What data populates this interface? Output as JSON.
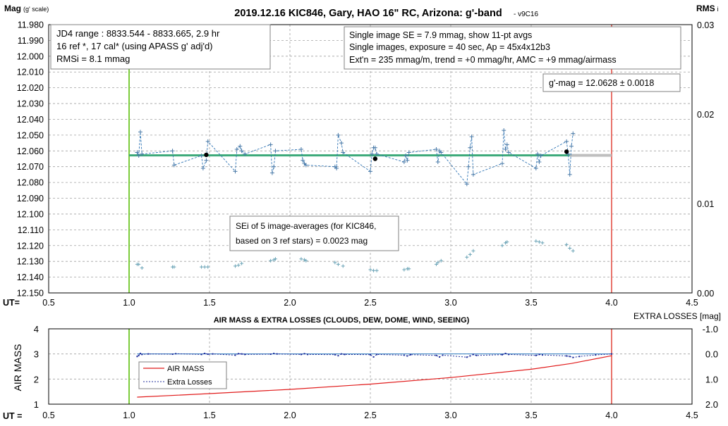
{
  "colors": {
    "grid": "#a0a0a0",
    "lc_line": "#2e74b5",
    "lc_marker": "#4a7aa8",
    "fit_green": "#3daa7a",
    "fit_gray": "#bfbfbf",
    "rms_marker": "#6aa3b6",
    "start_line": "#7ccc3c",
    "end_line": "#e8736b",
    "airmass": "#e11b1b",
    "losses": "#1f2f9e",
    "losses_ref": "#2e7cbf"
  },
  "chart_data": [
    {
      "type": "scatter",
      "title": "2019.12.16 KIC846, Gary, HAO 16\" RC, Arizona: g'-band",
      "title_suffix": "- v9C16",
      "ylabel_bold": "Mag",
      "ylabel_small": "(g' scale)",
      "y2label_bold": "RMS",
      "y2label_small": "i",
      "xlabel": "UT=",
      "xlim": [
        0.5,
        4.5
      ],
      "ylim": [
        11.98,
        12.15
      ],
      "y_reversed": true,
      "y2lim": [
        0,
        0.03
      ],
      "x_ticks": [
        "0.5",
        "1.0",
        "1.5",
        "2.0",
        "2.5",
        "3.0",
        "3.5",
        "4.0",
        "4.5"
      ],
      "y_ticks": [
        "11.980",
        "11.990",
        "12.000",
        "12.010",
        "12.020",
        "12.030",
        "12.040",
        "12.050",
        "12.060",
        "12.070",
        "12.080",
        "12.090",
        "12.100",
        "12.110",
        "12.120",
        "12.130",
        "12.140",
        "12.150"
      ],
      "y2_ticks": [
        "0.00",
        "0.01",
        "0.02",
        "0.03"
      ],
      "grid": true,
      "start_ut": 1.0,
      "end_ut": 4.0,
      "fit_mag": 12.0628,
      "fit_green_range": [
        1.0,
        3.74
      ],
      "fit_gray_range": [
        3.74,
        4.0
      ],
      "series": [
        {
          "x": [
            1.05,
            1.06,
            1.07,
            1.08,
            1.27,
            1.28,
            1.45,
            1.46,
            1.48,
            1.49,
            1.66,
            1.67,
            1.69,
            1.7,
            1.72,
            1.88,
            1.89,
            1.9,
            1.91,
            2.07,
            2.08,
            2.09,
            2.1,
            2.28,
            2.29,
            2.3,
            2.32,
            2.33,
            2.5,
            2.51,
            2.52,
            2.53,
            2.54,
            2.71,
            2.72,
            2.73,
            2.74,
            2.91,
            2.92,
            2.93,
            2.94,
            3.1,
            3.11,
            3.12,
            3.13,
            3.14,
            3.32,
            3.33,
            3.34,
            3.35,
            3.36,
            3.53,
            3.54,
            3.55,
            3.56,
            3.72,
            3.73,
            3.74,
            3.75,
            3.76
          ],
          "y": [
            12.061,
            12.063,
            12.048,
            12.062,
            12.06,
            12.069,
            12.063,
            12.071,
            12.066,
            12.054,
            12.073,
            12.059,
            12.057,
            12.06,
            12.062,
            12.056,
            12.074,
            12.07,
            12.06,
            12.059,
            12.066,
            12.068,
            12.069,
            12.07,
            12.071,
            12.05,
            12.055,
            12.061,
            12.073,
            12.062,
            12.058,
            12.058,
            12.062,
            12.067,
            12.063,
            12.066,
            12.061,
            12.059,
            12.067,
            12.06,
            12.061,
            12.081,
            12.07,
            12.058,
            12.051,
            12.075,
            12.068,
            12.047,
            12.059,
            12.056,
            12.061,
            12.071,
            12.062,
            12.067,
            12.063,
            12.054,
            12.062,
            12.075,
            12.057,
            12.049
          ]
        }
      ],
      "group_averages": {
        "x": [
          1.48,
          2.53,
          3.72
        ],
        "y": [
          12.0625,
          12.065,
          12.0605
        ]
      },
      "rms_points": {
        "x": [
          1.05,
          1.06,
          1.08,
          1.27,
          1.28,
          1.45,
          1.47,
          1.49,
          1.66,
          1.68,
          1.7,
          1.88,
          1.9,
          1.91,
          2.07,
          2.09,
          2.1,
          2.28,
          2.3,
          2.33,
          2.5,
          2.52,
          2.54,
          2.71,
          2.73,
          2.74,
          2.91,
          2.92,
          2.94,
          3.1,
          3.12,
          3.14,
          3.32,
          3.34,
          3.35,
          3.53,
          3.55,
          3.57,
          3.72,
          3.74,
          3.76
        ],
        "y": [
          0.0032,
          0.0032,
          0.0028,
          0.0029,
          0.0029,
          0.0029,
          0.0029,
          0.0029,
          0.003,
          0.0031,
          0.0033,
          0.0036,
          0.0037,
          0.0038,
          0.0038,
          0.0037,
          0.0036,
          0.0034,
          0.0032,
          0.003,
          0.0026,
          0.0025,
          0.0025,
          0.0026,
          0.0027,
          0.0027,
          0.0032,
          0.0034,
          0.0036,
          0.004,
          0.0043,
          0.0047,
          0.0053,
          0.0056,
          0.0057,
          0.0058,
          0.0057,
          0.0056,
          0.0054,
          0.005,
          0.0047
        ]
      },
      "annotations": {
        "box1": [
          "JD4 range : 8833.544 - 8833.665,  2.9  hr",
          "16 ref *, 17 cal* (using APASS g' adj'd)",
          "RMSi = 8.1 mmag"
        ],
        "box2": [
          "Single image SE = 7.9 mmag, show  11-pt avgs",
          "Single images, exposure = 40 sec, Ap = 45x4x12b3",
          "Ext'n = 235 mmag/m, trend =  +0 mmag/hr, AMC = +9 mmag/airmass"
        ],
        "box3": "g'-mag = 12.0628 ± 0.0018",
        "box4": [
          "SEi of 5 image-averages (for KIC846,",
          "based on 3 ref stars) = 0.0023 mag"
        ]
      }
    },
    {
      "type": "line",
      "title": "AIR MASS & EXTRA LOSSES (CLOUDS, DEW, DOME, WIND, SEEING)",
      "ylabel": "AIR MASS",
      "y2label": "EXTRA LOSSES [mag]",
      "xlabel": "UT =",
      "xlim": [
        0.5,
        4.5
      ],
      "ylim": [
        1,
        4
      ],
      "y2lim": [
        2.0,
        -1.0
      ],
      "x_ticks": [
        "0.5",
        "1.0",
        "1.5",
        "2.0",
        "2.5",
        "3.0",
        "3.5",
        "4.0",
        "4.5"
      ],
      "y_ticks": [
        "1",
        "2",
        "3",
        "4"
      ],
      "y2_ticks": [
        "2.0",
        "1.0",
        "0.0",
        "-1.0"
      ],
      "grid": true,
      "series": [
        {
          "name": "AIR MASS",
          "x": [
            1.05,
            1.5,
            2.0,
            2.5,
            3.0,
            3.5,
            3.75,
            4.0
          ],
          "y": [
            1.28,
            1.42,
            1.59,
            1.8,
            2.06,
            2.39,
            2.62,
            2.93
          ]
        },
        {
          "name": "Extra Losses",
          "x": [
            1.05,
            1.06,
            1.07,
            1.08,
            1.12,
            1.27,
            1.29,
            1.45,
            1.47,
            1.49,
            1.52,
            1.66,
            1.68,
            1.7,
            1.72,
            1.88,
            1.9,
            1.92,
            2.07,
            2.09,
            2.11,
            2.28,
            2.3,
            2.32,
            2.34,
            2.5,
            2.52,
            2.54,
            2.71,
            2.73,
            2.75,
            2.91,
            2.93,
            2.95,
            3.1,
            3.12,
            3.14,
            3.16,
            3.32,
            3.34,
            3.36,
            3.53,
            3.55,
            3.57,
            3.72,
            3.74,
            3.76,
            3.8,
            3.9,
            4.0
          ],
          "y": [
            0.1,
            0.06,
            -0.02,
            0.02,
            0.0,
            0.01,
            -0.01,
            0.02,
            -0.02,
            0.01,
            0.0,
            0.05,
            -0.01,
            0.0,
            0.02,
            0.01,
            -0.02,
            0.0,
            0.02,
            -0.01,
            0.02,
            0.03,
            0.07,
            0.0,
            0.02,
            0.03,
            0.12,
            0.02,
            0.05,
            0.08,
            0.03,
            0.06,
            0.12,
            0.05,
            0.13,
            0.08,
            0.02,
            0.06,
            0.03,
            -0.02,
            0.02,
            0.06,
            0.02,
            0.04,
            0.08,
            0.1,
            0.14,
            0.1,
            0.04,
            0.0
          ]
        }
      ],
      "start_ut": 1.0,
      "end_ut": 4.0
    }
  ]
}
